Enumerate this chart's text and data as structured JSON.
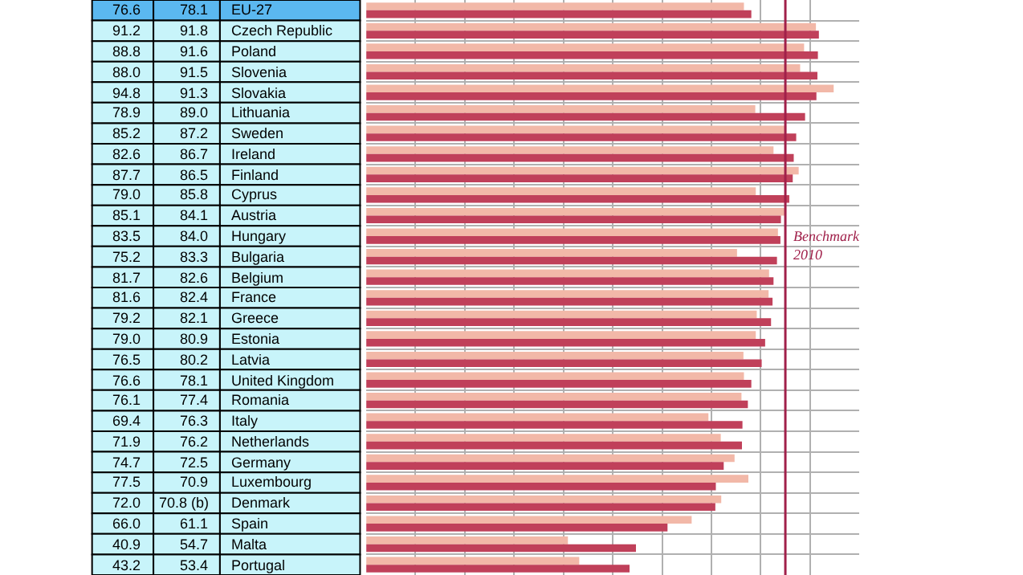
{
  "chart_data": {
    "type": "bar",
    "orientation": "horizontal",
    "categories": [
      "EU-27",
      "Czech Republic",
      "Poland",
      "Slovenia",
      "Slovakia",
      "Lithuania",
      "Sweden",
      "Ireland",
      "Finland",
      "Cyprus",
      "Austria",
      "Hungary",
      "Bulgaria",
      "Belgium",
      "France",
      "Greece",
      "Estonia",
      "Latvia",
      "United Kingdom",
      "Romania",
      "Italy",
      "Netherlands",
      "Germany",
      "Luxembourg",
      "Denmark",
      "Spain",
      "Malta",
      "Portugal"
    ],
    "series": [
      {
        "color": "#f2b8a8",
        "values": [
          76.6,
          91.2,
          88.8,
          88.0,
          94.8,
          78.9,
          85.2,
          82.6,
          87.7,
          79.0,
          85.1,
          83.5,
          75.2,
          81.7,
          81.6,
          79.2,
          79.0,
          76.5,
          76.6,
          76.1,
          69.4,
          71.9,
          74.7,
          77.5,
          72.0,
          66.0,
          40.9,
          43.2
        ],
        "value_labels": [
          "76.6",
          "91.2",
          "88.8",
          "88.0",
          "94.8",
          "78.9",
          "85.2",
          "82.6",
          "87.7",
          "79.0",
          "85.1",
          "83.5",
          "75.2",
          "81.7",
          "81.6",
          "79.2",
          "79.0",
          "76.5",
          "76.6",
          "76.1",
          "69.4",
          "71.9",
          "74.7",
          "77.5",
          "72.0",
          "66.0",
          "40.9",
          "43.2"
        ]
      },
      {
        "color": "#c0405a",
        "values": [
          78.1,
          91.8,
          91.6,
          91.5,
          91.3,
          89.0,
          87.2,
          86.7,
          86.5,
          85.8,
          84.1,
          84.0,
          83.3,
          82.6,
          82.4,
          82.1,
          80.9,
          80.2,
          78.1,
          77.4,
          76.3,
          76.2,
          72.5,
          70.9,
          70.8,
          61.1,
          54.7,
          53.4
        ],
        "value_labels": [
          "78.1",
          "91.8",
          "91.6",
          "91.5",
          "91.3",
          "89.0",
          "87.2",
          "86.7",
          "86.5",
          "85.8",
          "84.1",
          "84.0",
          "83.3",
          "82.6",
          "82.4",
          "82.1",
          "80.9",
          "80.2",
          "78.1",
          "77.4",
          "76.3",
          "76.2",
          "72.5",
          "70.9",
          "70.8 (b)",
          "61.1",
          "54.7",
          "53.4"
        ]
      }
    ],
    "xlim": [
      0,
      100
    ],
    "tick_labels": false,
    "ref_lines": [
      {
        "axis": "x",
        "value": 85,
        "label": "Benchmark 2010",
        "color": "#a0204a"
      }
    ],
    "grid": true
  }
}
